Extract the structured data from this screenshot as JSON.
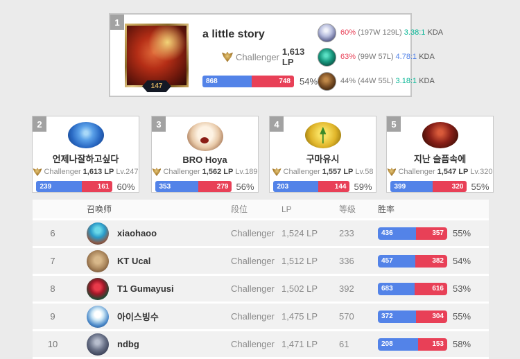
{
  "colors": {
    "win_blue": "#5383e8",
    "loss_red": "#e84057",
    "kda_green": "#00b493",
    "kda_blue": "#5383e8",
    "winrate_hot_red": "#e84057"
  },
  "top_player": {
    "rank": "1",
    "summoner_level": "147",
    "name": "a little story",
    "tier": "Challenger",
    "lp": "1,613 LP",
    "wins": "868",
    "losses": "748",
    "winrate": "54%",
    "winrate_pct": 54,
    "champions": [
      {
        "icon": "champion-icon-1",
        "winrate": "60%",
        "record": "(197W 129L)",
        "kda": "3.38:1",
        "kda_label": "KDA"
      },
      {
        "icon": "champion-icon-2",
        "winrate": "63%",
        "record": "(99W 57L)",
        "kda": "4.78:1",
        "kda_label": "KDA"
      },
      {
        "icon": "champion-icon-3",
        "winrate": "44%",
        "record": "(44W 55L)",
        "kda": "3.18:1",
        "kda_label": "KDA"
      }
    ]
  },
  "cards": [
    {
      "rank": "2",
      "name": "언제나잘하고싶다",
      "tier": "Challenger",
      "lp": "1,613 LP",
      "level": "Lv.247",
      "wins": "239",
      "losses": "161",
      "winrate": "60%",
      "winrate_pct": 60
    },
    {
      "rank": "3",
      "name": "BRO Hoya",
      "tier": "Challenger",
      "lp": "1,562 LP",
      "level": "Lv.189",
      "wins": "353",
      "losses": "279",
      "winrate": "56%",
      "winrate_pct": 56
    },
    {
      "rank": "4",
      "name": "구마유시",
      "tier": "Challenger",
      "lp": "1,557 LP",
      "level": "Lv.58",
      "wins": "203",
      "losses": "144",
      "winrate": "59%",
      "winrate_pct": 59
    },
    {
      "rank": "5",
      "name": "지난 슬픔속에",
      "tier": "Challenger",
      "lp": "1,547 LP",
      "level": "Lv.320",
      "wins": "399",
      "losses": "320",
      "winrate": "55%",
      "winrate_pct": 55
    }
  ],
  "table": {
    "headers": {
      "summoner": "召唤师",
      "tier": "段位",
      "lp": "LP",
      "level": "等级",
      "winrate": "胜率"
    },
    "rows": [
      {
        "rank": "6",
        "name": "xiaohaoo",
        "tier": "Challenger",
        "lp": "1,524 LP",
        "level": "233",
        "wins": "436",
        "losses": "357",
        "winrate": "55%",
        "winrate_pct": 55
      },
      {
        "rank": "7",
        "name": "KT Ucal",
        "tier": "Challenger",
        "lp": "1,512 LP",
        "level": "336",
        "wins": "457",
        "losses": "382",
        "winrate": "54%",
        "winrate_pct": 54
      },
      {
        "rank": "8",
        "name": "T1 Gumayusi",
        "tier": "Challenger",
        "lp": "1,502 LP",
        "level": "392",
        "wins": "683",
        "losses": "616",
        "winrate": "53%",
        "winrate_pct": 53
      },
      {
        "rank": "9",
        "name": "아이스빙수",
        "tier": "Challenger",
        "lp": "1,475 LP",
        "level": "570",
        "wins": "372",
        "losses": "304",
        "winrate": "55%",
        "winrate_pct": 55
      },
      {
        "rank": "10",
        "name": "ndbg",
        "tier": "Challenger",
        "lp": "1,471 LP",
        "level": "61",
        "wins": "208",
        "losses": "153",
        "winrate": "58%",
        "winrate_pct": 58
      }
    ]
  }
}
